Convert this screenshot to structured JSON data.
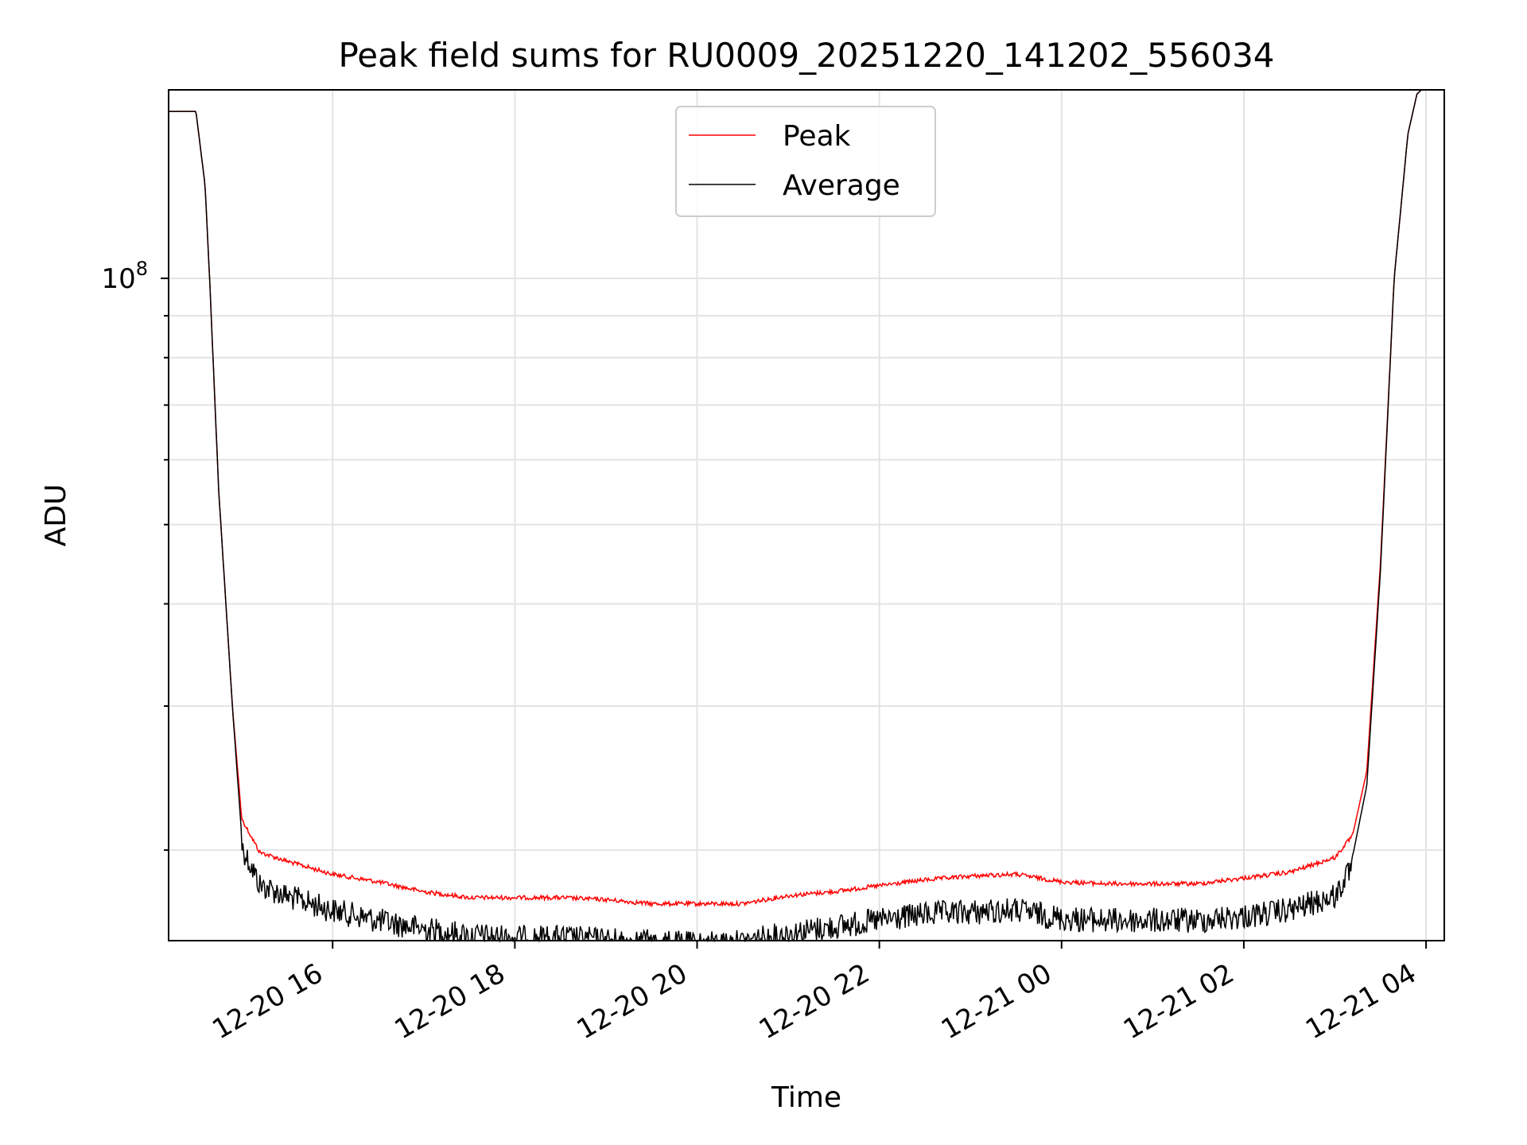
{
  "chart_data": {
    "type": "line",
    "title": "Peak field sums for RU0009_20251220_141202_556034",
    "xlabel": "Time",
    "ylabel": "ADU",
    "yscale": "log",
    "ylim": [
      15500000,
      170000000
    ],
    "xlim_hours": [
      14.2,
      28.2
    ],
    "grid": true,
    "legend_position": "upper-center",
    "x_ticks": [
      {
        "label": "12-20 16",
        "hours": 16
      },
      {
        "label": "12-20 18",
        "hours": 18
      },
      {
        "label": "12-20 20",
        "hours": 20
      },
      {
        "label": "12-20 22",
        "hours": 22
      },
      {
        "label": "12-21 00",
        "hours": 24
      },
      {
        "label": "12-21 02",
        "hours": 26
      },
      {
        "label": "12-21 04",
        "hours": 28
      }
    ],
    "y_major_ticks": [
      {
        "value": 100000000,
        "base": "10",
        "exponent": "8"
      }
    ],
    "y_minor_ticks": [
      20000000,
      30000000,
      40000000,
      50000000,
      60000000,
      70000000,
      80000000,
      90000000,
      200000000
    ],
    "series": [
      {
        "name": "Peak",
        "color": "#ff0000",
        "x_hours": [
          14.2,
          14.3,
          14.5,
          14.6,
          14.65,
          14.75,
          14.9,
          15.0,
          15.2,
          15.5,
          16.0,
          16.5,
          17.0,
          17.5,
          18.0,
          18.5,
          19.0,
          19.5,
          20.0,
          20.5,
          21.0,
          21.5,
          22.0,
          22.5,
          23.0,
          23.5,
          24.0,
          24.5,
          25.0,
          25.5,
          26.0,
          26.5,
          27.0,
          27.2,
          27.35,
          27.5,
          27.65,
          27.8,
          27.9,
          27.95
        ],
        "values": [
          160000000,
          160000000,
          160000000,
          130000000,
          100000000,
          55000000,
          30000000,
          22000000,
          20000000,
          19500000,
          18800000,
          18400000,
          17900000,
          17600000,
          17600000,
          17600000,
          17500000,
          17300000,
          17300000,
          17300000,
          17700000,
          17900000,
          18200000,
          18500000,
          18700000,
          18800000,
          18400000,
          18300000,
          18300000,
          18300000,
          18600000,
          18900000,
          19700000,
          21000000,
          25000000,
          45000000,
          100000000,
          150000000,
          168000000,
          170000000
        ]
      },
      {
        "name": "Average",
        "color": "#000000",
        "x_hours": [
          14.2,
          14.3,
          14.5,
          14.6,
          14.65,
          14.75,
          14.9,
          15.0,
          15.2,
          15.5,
          16.0,
          16.5,
          17.0,
          17.5,
          18.0,
          18.5,
          19.0,
          19.5,
          20.0,
          20.5,
          21.0,
          21.5,
          22.0,
          22.5,
          23.0,
          23.5,
          24.0,
          24.5,
          25.0,
          25.5,
          26.0,
          26.5,
          27.0,
          27.2,
          27.35,
          27.5,
          27.65,
          27.8,
          27.9,
          27.95
        ],
        "values": [
          160000000,
          160000000,
          160000000,
          130000000,
          100000000,
          55000000,
          30000000,
          21000000,
          18800000,
          18200000,
          17500000,
          17000000,
          16600000,
          16300000,
          16200000,
          16200000,
          16100000,
          16000000,
          15900000,
          16000000,
          16400000,
          16700000,
          17000000,
          17300000,
          17400000,
          17500000,
          17100000,
          17000000,
          17000000,
          17000000,
          17200000,
          17500000,
          18200000,
          19800000,
          24000000,
          44000000,
          100000000,
          150000000,
          168000000,
          170000000
        ]
      }
    ]
  }
}
